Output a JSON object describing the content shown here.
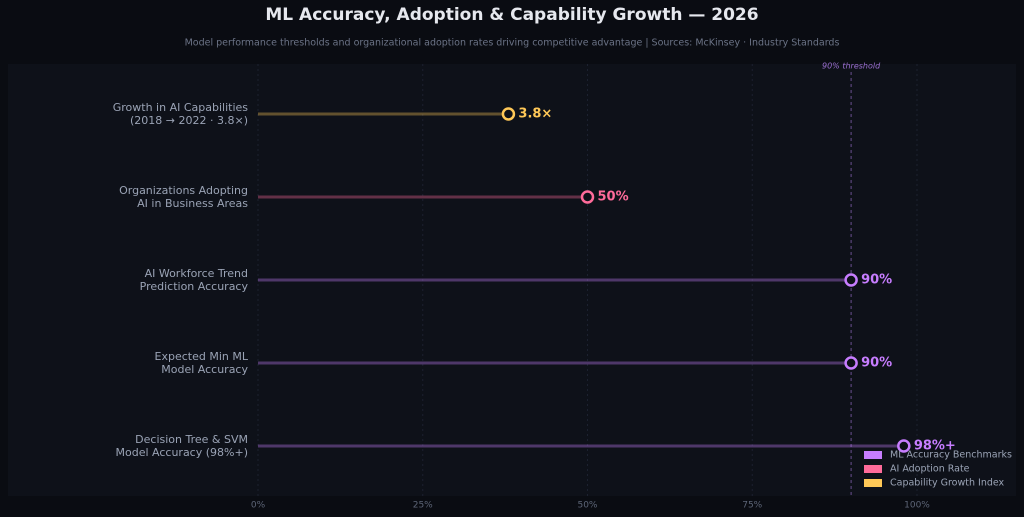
{
  "chart_data": {
    "type": "lollipop",
    "title": "ML Accuracy, Adoption & Capability Growth — 2026",
    "subtitle": "Model performance thresholds and organizational adoption rates driving competitive advantage  |  Sources: McKinsey · Industry Standards",
    "categories": [
      "Growth in AI Capabilities\n(2018 → 2022 · 3.8×)",
      "Organizations Adopting\nAI in Business Areas",
      "AI Workforce Trend\nPrediction Accuracy",
      "Expected Min ML\nModel Accuracy",
      "Decision Tree & SVM\nModel Accuracy (98%+)"
    ],
    "series": [
      {
        "name": "ML Accuracy Benchmarks",
        "color": "#c77dff",
        "values": [
          null,
          null,
          90,
          90,
          98
        ],
        "value_labels": [
          null,
          null,
          "90%",
          "90%",
          "98%+"
        ]
      },
      {
        "name": "AI Adoption Rate",
        "color": "#ff6b9a",
        "values": [
          null,
          50,
          null,
          null,
          null
        ],
        "value_labels": [
          null,
          "50%",
          null,
          null,
          null
        ]
      },
      {
        "name": "Capability Growth Index",
        "color": "#ffc857",
        "values": [
          38,
          null,
          null,
          null,
          null
        ],
        "value_labels": [
          "3.8×",
          null,
          null,
          null,
          null
        ]
      }
    ],
    "xlim": [
      0,
      100
    ],
    "xticks": [
      {
        "value": 0,
        "label": "0%"
      },
      {
        "value": 25,
        "label": "25%"
      },
      {
        "value": 50,
        "label": "50%"
      },
      {
        "value": 75,
        "label": "75%"
      },
      {
        "value": 100,
        "label": "100%"
      }
    ],
    "threshold": {
      "value": 90,
      "label": "90% threshold"
    },
    "grid": true,
    "legend": "lower right"
  }
}
